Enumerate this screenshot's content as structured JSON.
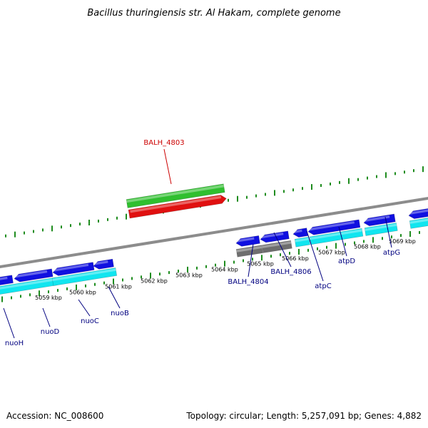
{
  "title": "Bacillus thuringiensis str. Al Hakam, complete genome",
  "footer": {
    "accession": "Accession: NC_008600",
    "stats": "Topology: circular; Length: 5,257,091 bp; Genes: 4,882"
  },
  "colors": {
    "backbone": "#8c8c8c",
    "tick": "#1e8c1e",
    "forward_gene": "#1010e0",
    "forward_cds": "#11e5ef",
    "reverse_gene": "#e01010",
    "highlight_gene": "#2fbf2f",
    "pseudo": "#6e6e6e",
    "label_default": "#000080",
    "label_highlight": "#cc0000"
  },
  "kbp_labels": [
    "5059 kbp",
    "5060 kbp",
    "5061 kbp",
    "5062 kbp",
    "5063 kbp",
    "5064 kbp",
    "5065 kbp",
    "5066 kbp",
    "5067 kbp",
    "5068 kbp",
    "5069 kbp"
  ],
  "gene_labels": [
    {
      "id": "nuoH",
      "text": "nuoH",
      "highlight": false
    },
    {
      "id": "nuoD",
      "text": "nuoD",
      "highlight": false
    },
    {
      "id": "nuoC",
      "text": "nuoC",
      "highlight": false
    },
    {
      "id": "nuoB",
      "text": "nuoB",
      "highlight": false
    },
    {
      "id": "BALH_4803",
      "text": "BALH_4803",
      "highlight": true
    },
    {
      "id": "BALH_4804",
      "text": "BALH_4804",
      "highlight": false
    },
    {
      "id": "BALH_4806",
      "text": "BALH_4806",
      "highlight": false
    },
    {
      "id": "atpC",
      "text": "atpC",
      "highlight": false
    },
    {
      "id": "atpD",
      "text": "atpD",
      "highlight": false
    },
    {
      "id": "atpG",
      "text": "atpG",
      "highlight": false
    }
  ]
}
